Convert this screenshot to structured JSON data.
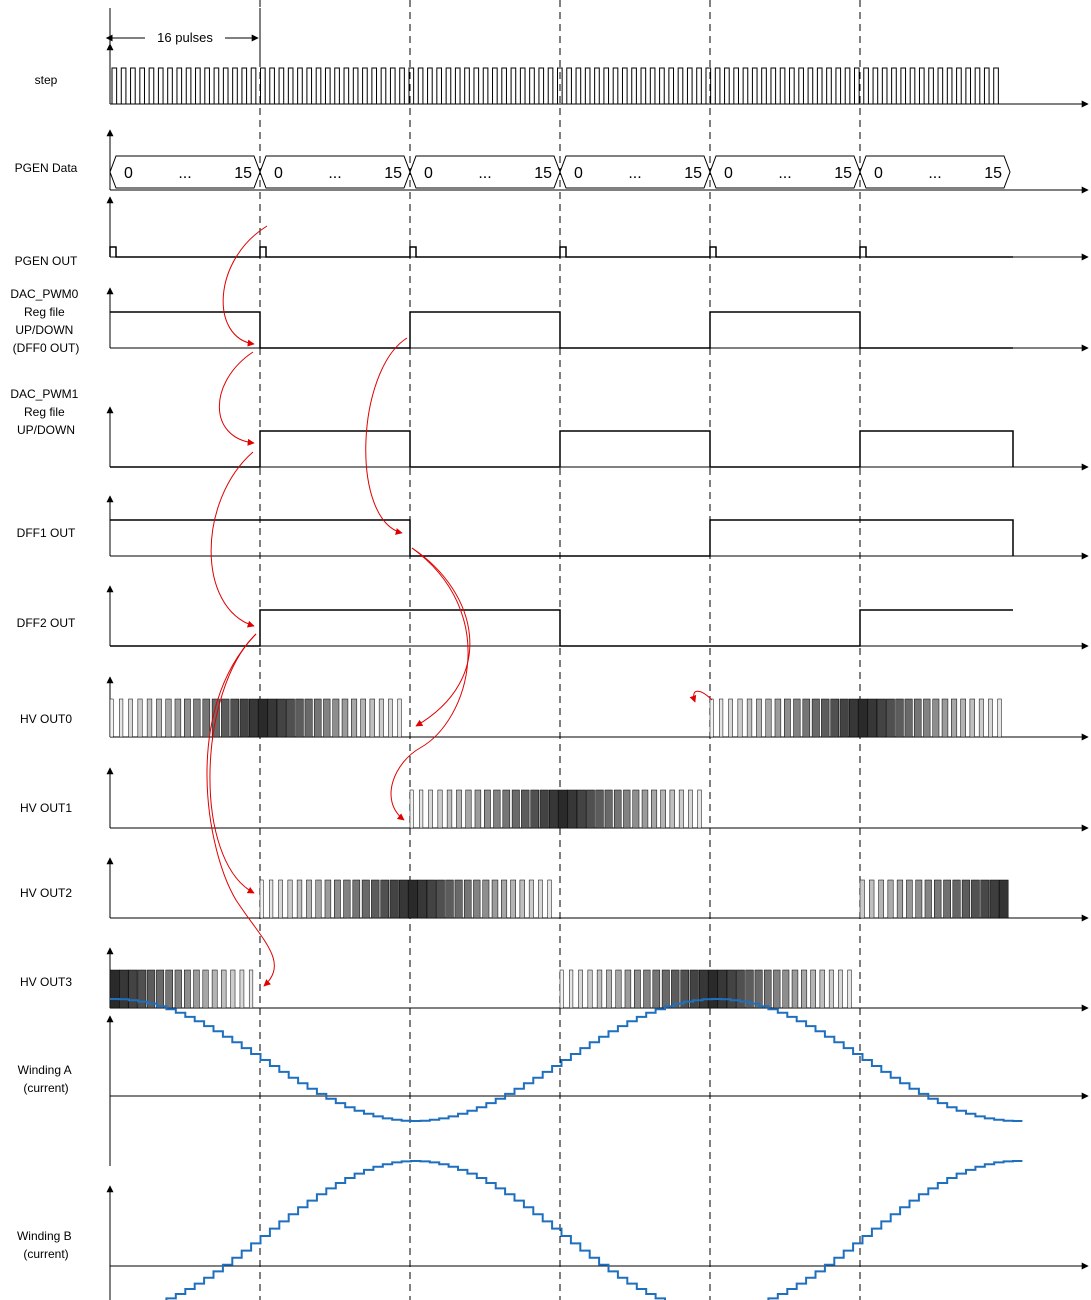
{
  "diagram": {
    "span_label": "16 pulses",
    "signal_labels": {
      "step": [
        "step"
      ],
      "pgen_data": [
        "PGEN Data"
      ],
      "pgen_out": [
        "PGEN OUT"
      ],
      "dac_pwm0": [
        "DAC_PWM0",
        "Reg file",
        "UP/DOWN",
        "(DFF0 OUT)"
      ],
      "dac_pwm1": [
        "DAC_PWM1",
        "Reg file",
        "UP/DOWN"
      ],
      "dff1": [
        "DFF1 OUT"
      ],
      "dff2": [
        "DFF2 OUT"
      ],
      "hv0": [
        "HV OUT0"
      ],
      "hv1": [
        "HV OUT1"
      ],
      "hv2": [
        "HV OUT2"
      ],
      "hv3": [
        "HV OUT3"
      ],
      "winding_a": [
        "Winding A",
        "(current)"
      ],
      "winding_b": [
        "Winding B",
        "(current)"
      ]
    },
    "bus_segment": {
      "start": "0",
      "middle": "...",
      "end": "15"
    },
    "bus_segment_count": 6,
    "pulses_per_segment": 16,
    "levels": {
      "dac_pwm0": [
        1,
        0,
        1,
        0,
        1,
        0
      ],
      "dac_pwm1": [
        0,
        1,
        0,
        1,
        0,
        1
      ],
      "dff1": [
        1,
        1,
        0,
        0,
        1,
        1
      ],
      "dff2": [
        0,
        1,
        1,
        0,
        0,
        1
      ]
    },
    "hv_active": {
      "hv0": [
        {
          "from": 0,
          "to": 2,
          "phase": 0
        },
        {
          "from": 4,
          "to": 6,
          "phase": 0
        }
      ],
      "hv1": [
        {
          "from": 2,
          "to": 4,
          "phase": 1
        }
      ],
      "hv2": [
        {
          "from": 1,
          "to": 3,
          "phase": 1
        },
        {
          "from": 5,
          "to": 6,
          "phase": 1
        }
      ],
      "hv3": [
        {
          "from": 0,
          "to": 1,
          "phase": 2
        },
        {
          "from": 3,
          "to": 5,
          "phase": 1
        }
      ]
    },
    "winding_a": {
      "steps_per_segment": 16,
      "phase_segments": 1,
      "amplitude": 1
    },
    "winding_b": {
      "steps_per_segment": 16,
      "phase_segments": 0,
      "amplitude": 1
    },
    "colors": {
      "line": "#000000",
      "arrow": "#e00000",
      "winding": "#1f6fbf",
      "hv_dark": "#2b2b2b",
      "hv_light": "#f2f2f2"
    }
  }
}
